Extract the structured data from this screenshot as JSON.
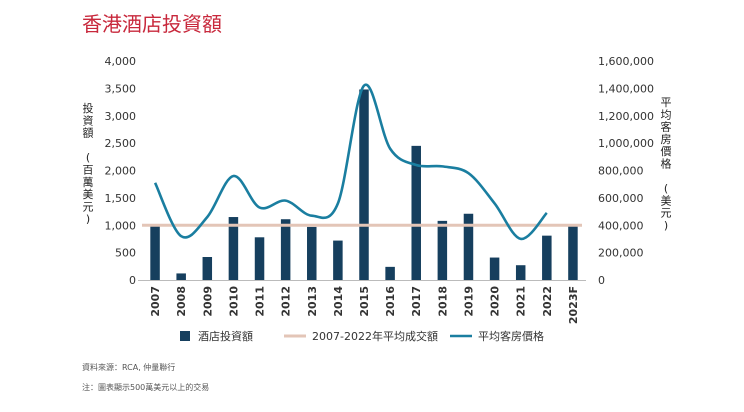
{
  "title": "香港酒店投資額",
  "notes": [
    "資料來源：RCA, 仲量聯行",
    "注：圖表顯示500萬美元以上的交易"
  ],
  "chart_data": {
    "type": "bar",
    "categories": [
      "2007",
      "2008",
      "2009",
      "2010",
      "2011",
      "2012",
      "2013",
      "2014",
      "2015",
      "2016",
      "2017",
      "2018",
      "2019",
      "2020",
      "2021",
      "2022",
      "2023F"
    ],
    "ylabel": "投資額 (百萬美元)",
    "y2label": "平均客房價格 (美元)",
    "ylim": [
      0,
      4000
    ],
    "y2lim": [
      0,
      1600000
    ],
    "yticks": [
      "0",
      "500",
      "1,000",
      "1,500",
      "2,000",
      "2,500",
      "3,000",
      "3,500",
      "4,000"
    ],
    "y2ticks": [
      "0",
      "200,000",
      "400,000",
      "600,000",
      "800,000",
      "1,000,000",
      "1,200,000",
      "1,400,000",
      "1,600,000"
    ],
    "series": [
      {
        "name": "酒店投資額",
        "type": "bar",
        "axis": "left",
        "color": "#163f5e",
        "values": [
          1000,
          120,
          420,
          1150,
          780,
          1110,
          970,
          720,
          3480,
          240,
          2450,
          1080,
          1210,
          410,
          270,
          810,
          1000
        ]
      },
      {
        "name": "2007-2022年平均成交額",
        "type": "line",
        "axis": "left",
        "color": "#e3c5b7",
        "values": [
          1000,
          1000,
          1000,
          1000,
          1000,
          1000,
          1000,
          1000,
          1000,
          1000,
          1000,
          1000,
          1000,
          1000,
          1000,
          1000,
          1000
        ]
      },
      {
        "name": "平均客房價格",
        "type": "line",
        "axis": "right",
        "color": "#1a7ea0",
        "values": [
          710000,
          320000,
          460000,
          760000,
          530000,
          580000,
          470000,
          560000,
          1420000,
          960000,
          840000,
          830000,
          780000,
          560000,
          300000,
          490000,
          null
        ]
      }
    ],
    "legend": "bottom",
    "grid": false
  }
}
